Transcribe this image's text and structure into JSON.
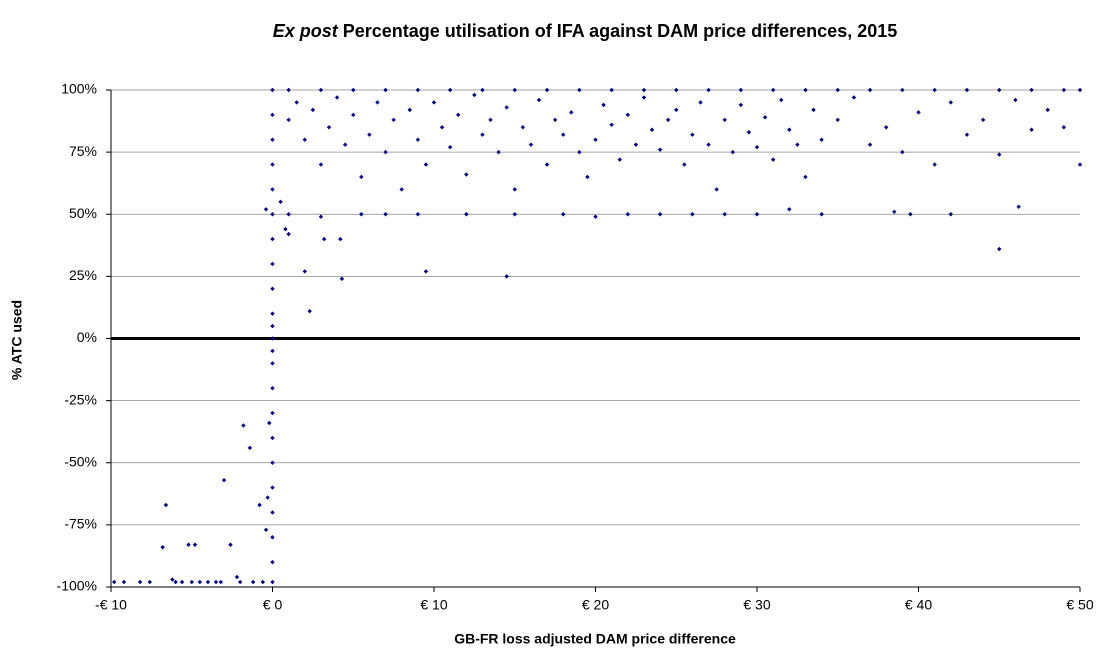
{
  "chart_data": {
    "type": "scatter",
    "title_italic": "Ex post",
    "title": "Percentage utilisation of IFA against DAM price differences, 2015",
    "xlabel": "GB-FR loss adjusted DAM price difference",
    "ylabel": "% ATC used",
    "color": "#000080",
    "grid": true,
    "xlim": [
      -10,
      50
    ],
    "ylim": [
      -100,
      100
    ],
    "xticks": [
      {
        "value": -10,
        "label": "-€ 10"
      },
      {
        "value": 0,
        "label": "€ 0"
      },
      {
        "value": 10,
        "label": "€ 10"
      },
      {
        "value": 20,
        "label": "€ 20"
      },
      {
        "value": 30,
        "label": "€ 30"
      },
      {
        "value": 40,
        "label": "€ 40"
      },
      {
        "value": 50,
        "label": "€ 50"
      }
    ],
    "yticks": [
      {
        "value": -100,
        "label": "-100%"
      },
      {
        "value": -75,
        "label": "-75%"
      },
      {
        "value": -50,
        "label": "-50%"
      },
      {
        "value": -25,
        "label": "-25%"
      },
      {
        "value": 0,
        "label": "0%"
      },
      {
        "value": 25,
        "label": "25%"
      },
      {
        "value": 50,
        "label": "50%"
      },
      {
        "value": 75,
        "label": "75%"
      },
      {
        "value": 100,
        "label": "100%"
      }
    ],
    "x": [
      -9.8,
      -9.2,
      -8.2,
      -7.6,
      -6.8,
      -6.6,
      -6.2,
      -6,
      -5.6,
      -5.2,
      -5,
      -4.8,
      -4.5,
      -4,
      -3.5,
      -3.2,
      -3,
      -2.6,
      -2.2,
      -2,
      -1.8,
      -1.4,
      -1.2,
      -0.8,
      -0.6,
      -0.4,
      -0.3,
      -0.2,
      -0.4,
      0,
      0,
      0,
      0,
      0,
      0,
      0,
      0,
      0,
      0,
      0,
      0,
      0,
      0,
      0,
      0,
      0,
      0,
      0,
      0,
      0,
      0,
      0,
      1,
      3,
      5,
      7,
      9,
      11,
      13,
      15,
      17,
      19,
      21,
      23,
      25,
      27,
      29,
      31,
      33,
      35,
      37,
      39,
      41,
      43,
      45,
      47,
      49,
      50,
      1,
      3,
      5.5,
      7,
      9,
      12,
      15,
      18,
      20,
      22,
      24,
      26,
      28,
      30,
      32,
      34,
      38.5,
      39.5,
      42,
      0.8,
      1,
      2,
      2.3,
      3.2,
      4.2,
      4.3,
      9.5,
      14.5,
      45,
      46.2,
      0.5,
      1,
      1.5,
      2,
      2.5,
      3,
      3.5,
      4,
      4.5,
      5,
      5.5,
      6,
      6.5,
      7,
      7.5,
      8,
      8.5,
      9,
      9.5,
      10,
      10.5,
      11,
      11.5,
      12,
      12.5,
      13,
      13.5,
      14,
      14.5,
      15,
      15.5,
      16,
      16.5,
      17,
      17.5,
      18,
      18.5,
      19,
      19.5,
      20,
      20.5,
      21,
      21.5,
      22,
      22.5,
      23,
      23.5,
      24,
      24.5,
      25,
      25.5,
      26,
      26.5,
      27,
      27.5,
      28,
      28.5,
      29,
      29.5,
      30,
      30.5,
      31,
      31.5,
      32,
      32.5,
      33,
      33.5,
      34,
      35,
      36,
      37,
      38,
      39,
      40,
      41,
      42,
      43,
      44,
      45,
      46,
      47,
      48,
      49,
      50
    ],
    "values": [
      -98,
      -98,
      -98,
      -98,
      -84,
      -67,
      -97,
      -98,
      -98,
      -83,
      -98,
      -83,
      -98,
      -98,
      -98,
      -98,
      -57,
      -83,
      -96,
      -98,
      -35,
      -44,
      -98,
      -67,
      -98,
      -77,
      -64,
      -34,
      52,
      -98,
      -90,
      -80,
      -70,
      -60,
      -50,
      -40,
      -30,
      -20,
      -10,
      -5,
      0,
      5,
      10,
      20,
      30,
      40,
      50,
      60,
      70,
      80,
      90,
      100,
      100,
      100,
      100,
      100,
      100,
      100,
      100,
      100,
      100,
      100,
      100,
      100,
      100,
      100,
      100,
      100,
      100,
      100,
      100,
      100,
      100,
      100,
      100,
      100,
      100,
      100,
      50,
      49,
      50,
      50,
      50,
      50,
      50,
      50,
      49,
      50,
      50,
      50,
      50,
      50,
      52,
      50,
      51,
      50,
      50,
      44,
      42,
      27,
      11,
      40,
      40,
      24,
      27,
      25,
      36,
      53,
      55,
      88,
      95,
      80,
      92,
      70,
      85,
      97,
      78,
      90,
      65,
      82,
      95,
      75,
      88,
      60,
      92,
      80,
      70,
      95,
      85,
      77,
      90,
      66,
      98,
      82,
      88,
      75,
      93,
      60,
      85,
      78,
      96,
      70,
      88,
      82,
      91,
      75,
      65,
      80,
      94,
      86,
      72,
      90,
      78,
      97,
      84,
      76,
      88,
      92,
      70,
      82,
      95,
      78,
      60,
      88,
      75,
      94,
      83,
      77,
      89,
      72,
      96,
      84,
      78,
      65,
      92,
      80,
      88,
      97,
      78,
      85,
      75,
      91,
      70,
      95,
      82,
      88,
      74,
      96,
      84,
      92,
      85,
      70
    ]
  }
}
